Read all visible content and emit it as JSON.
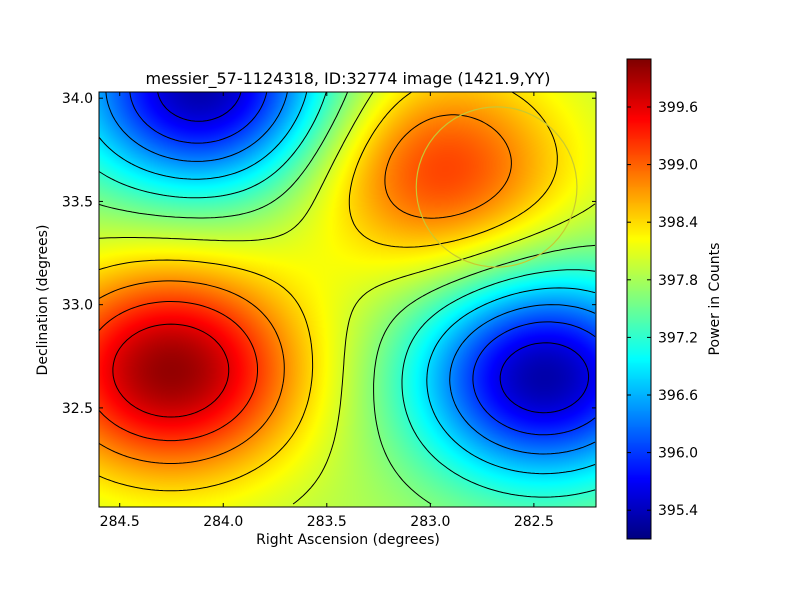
{
  "chart_data": {
    "type": "heatmap",
    "title": "messier_57-1124318, ID:32774 image (1421.9,YY)",
    "xlabel": "Right Ascension (degrees)",
    "ylabel": "Declination (degrees)",
    "xlim": [
      284.6,
      282.2
    ],
    "ylim": [
      32.02,
      34.03
    ],
    "x_reversed": true,
    "xticks": [
      284.5,
      284.0,
      283.5,
      283.0,
      282.5
    ],
    "xtick_labels": [
      "284.5",
      "284.0",
      "283.5",
      "283.0",
      "282.5"
    ],
    "yticks": [
      32.5,
      33.0,
      33.5,
      34.0
    ],
    "ytick_labels": [
      "32.5",
      "33.0",
      "33.5",
      "34.0"
    ],
    "colormap": "jet",
    "colorbar": {
      "label": "Power in Counts",
      "range": [
        395.1,
        400.1
      ],
      "ticks": [
        395.4,
        396.0,
        396.6,
        397.2,
        397.8,
        398.4,
        399.0,
        399.6
      ],
      "tick_labels": [
        "395.4",
        "396.0",
        "396.6",
        "397.2",
        "397.8",
        "398.4",
        "399.0",
        "399.6"
      ]
    },
    "contour_color": "#000000",
    "contour_levels": [
      395.6,
      396.0,
      396.4,
      396.8,
      397.2,
      397.6,
      398.0,
      398.4,
      398.8,
      399.2,
      399.6
    ],
    "field_features": [
      {
        "kind": "maximum",
        "ra": 284.25,
        "dec": 32.68,
        "value": 400.0
      },
      {
        "kind": "maximum",
        "ra": 282.95,
        "dec": 33.65,
        "value": 399.2
      },
      {
        "kind": "minimum",
        "ra": 284.1,
        "dec": 34.05,
        "value": 395.3
      },
      {
        "kind": "minimum",
        "ra": 282.45,
        "dec": 32.65,
        "value": 395.3
      }
    ],
    "annotation_circle": {
      "ra_center": 282.68,
      "dec_center": 33.57,
      "radius_deg": 0.4,
      "color": "#c8c832"
    }
  }
}
